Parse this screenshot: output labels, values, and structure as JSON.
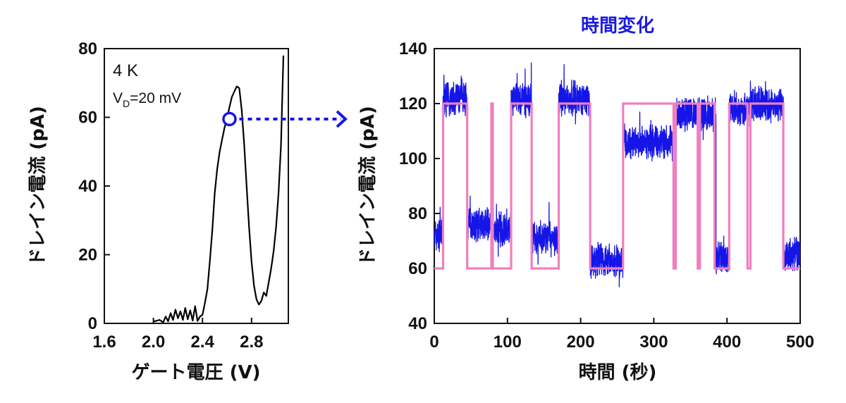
{
  "chart_data": [
    {
      "type": "line",
      "title": "",
      "xlabel": "ゲート電圧 (V)",
      "ylabel": "ドレイン電流 (pA)",
      "xlim": [
        1.6,
        3.1
      ],
      "ylim": [
        0,
        80
      ],
      "xticks": [
        "1.6",
        "2.0",
        "2.4",
        "2.8"
      ],
      "yticks": [
        "0",
        "20",
        "40",
        "60",
        "80"
      ],
      "grid": false,
      "annotation_temp": "4 K",
      "annotation_vd": {
        "base": "V",
        "sub": "D",
        "rest": "=20 mV"
      },
      "marker": {
        "x": 2.62,
        "y": 59.5
      },
      "series": [
        {
          "color": "#000000",
          "x": [
            2.0,
            2.05,
            2.08,
            2.1,
            2.12,
            2.14,
            2.16,
            2.18,
            2.2,
            2.22,
            2.24,
            2.26,
            2.28,
            2.3,
            2.32,
            2.34,
            2.36,
            2.38,
            2.4,
            2.42,
            2.44,
            2.46,
            2.48,
            2.5,
            2.52,
            2.54,
            2.56,
            2.58,
            2.6,
            2.62,
            2.64,
            2.66,
            2.68,
            2.7,
            2.72,
            2.74,
            2.76,
            2.78,
            2.8,
            2.82,
            2.84,
            2.86,
            2.88,
            2.9,
            2.92,
            2.94,
            2.96,
            2.98,
            3.0,
            3.02,
            3.04,
            3.06
          ],
          "y": [
            0.5,
            1.0,
            0.3,
            2.0,
            0.6,
            3.0,
            1.0,
            4.0,
            1.5,
            3.5,
            1.0,
            4.5,
            1.2,
            3.8,
            0.8,
            5.0,
            0.7,
            2.0,
            2.5,
            6.0,
            10.0,
            18.0,
            27.0,
            38.0,
            45.0,
            50.0,
            53.5,
            57.0,
            59.5,
            63.0,
            66.0,
            67.5,
            69.0,
            68.5,
            62.0,
            52.0,
            40.0,
            28.0,
            18.0,
            11.0,
            7.0,
            5.5,
            6.5,
            9.0,
            8.0,
            12.0,
            16.0,
            21.0,
            28.0,
            38.0,
            52.0,
            78.0
          ]
        }
      ]
    },
    {
      "type": "line",
      "title": "時間変化",
      "xlabel": "時間 (秒)",
      "ylabel": "ドレイン電流 (pA)",
      "xlim": [
        0,
        500
      ],
      "ylim": [
        40,
        140
      ],
      "xticks": [
        "0",
        "100",
        "200",
        "300",
        "400",
        "500"
      ],
      "yticks": [
        "40",
        "60",
        "80",
        "100",
        "120",
        "140"
      ],
      "grid": false,
      "series": [
        {
          "color": "#1515e8",
          "levels": [
            {
              "x": [
                0,
                12
              ],
              "mean": 72
            },
            {
              "x": [
                12,
                45
              ],
              "mean": 122
            },
            {
              "x": [
                45,
                80
              ],
              "mean": 76
            },
            {
              "x": [
                80,
                105
              ],
              "mean": 74
            },
            {
              "x": [
                105,
                133
              ],
              "mean": 121
            },
            {
              "x": [
                133,
                170
              ],
              "mean": 71
            },
            {
              "x": [
                170,
                213
              ],
              "mean": 122
            },
            {
              "x": [
                213,
                258
              ],
              "mean": 63
            },
            {
              "x": [
                258,
                330
              ],
              "mean": 106
            },
            {
              "x": [
                330,
                385
              ],
              "mean": 116
            },
            {
              "x": [
                385,
                403
              ],
              "mean": 64
            },
            {
              "x": [
                403,
                432
              ],
              "mean": 118
            },
            {
              "x": [
                432,
                477
              ],
              "mean": 120
            },
            {
              "x": [
                477,
                500
              ],
              "mean": 65
            }
          ]
        },
        {
          "color": "#ef7fc0",
          "x": [
            0,
            12,
            12,
            18,
            18,
            45,
            45,
            78,
            78,
            80,
            80,
            105,
            105,
            133,
            133,
            170,
            170,
            213,
            213,
            258,
            258,
            327,
            327,
            330,
            330,
            360,
            360,
            363,
            363,
            383,
            383,
            385,
            385,
            403,
            403,
            428,
            428,
            432,
            432,
            434,
            434,
            477,
            477,
            500
          ],
          "y": [
            60,
            60,
            120,
            120,
            120,
            120,
            60,
            60,
            120,
            120,
            60,
            60,
            120,
            120,
            60,
            60,
            120,
            120,
            60,
            60,
            120,
            120,
            60,
            60,
            120,
            120,
            60,
            60,
            120,
            120,
            60,
            60,
            60,
            60,
            120,
            120,
            60,
            60,
            120,
            120,
            120,
            120,
            60,
            60
          ]
        }
      ]
    }
  ]
}
